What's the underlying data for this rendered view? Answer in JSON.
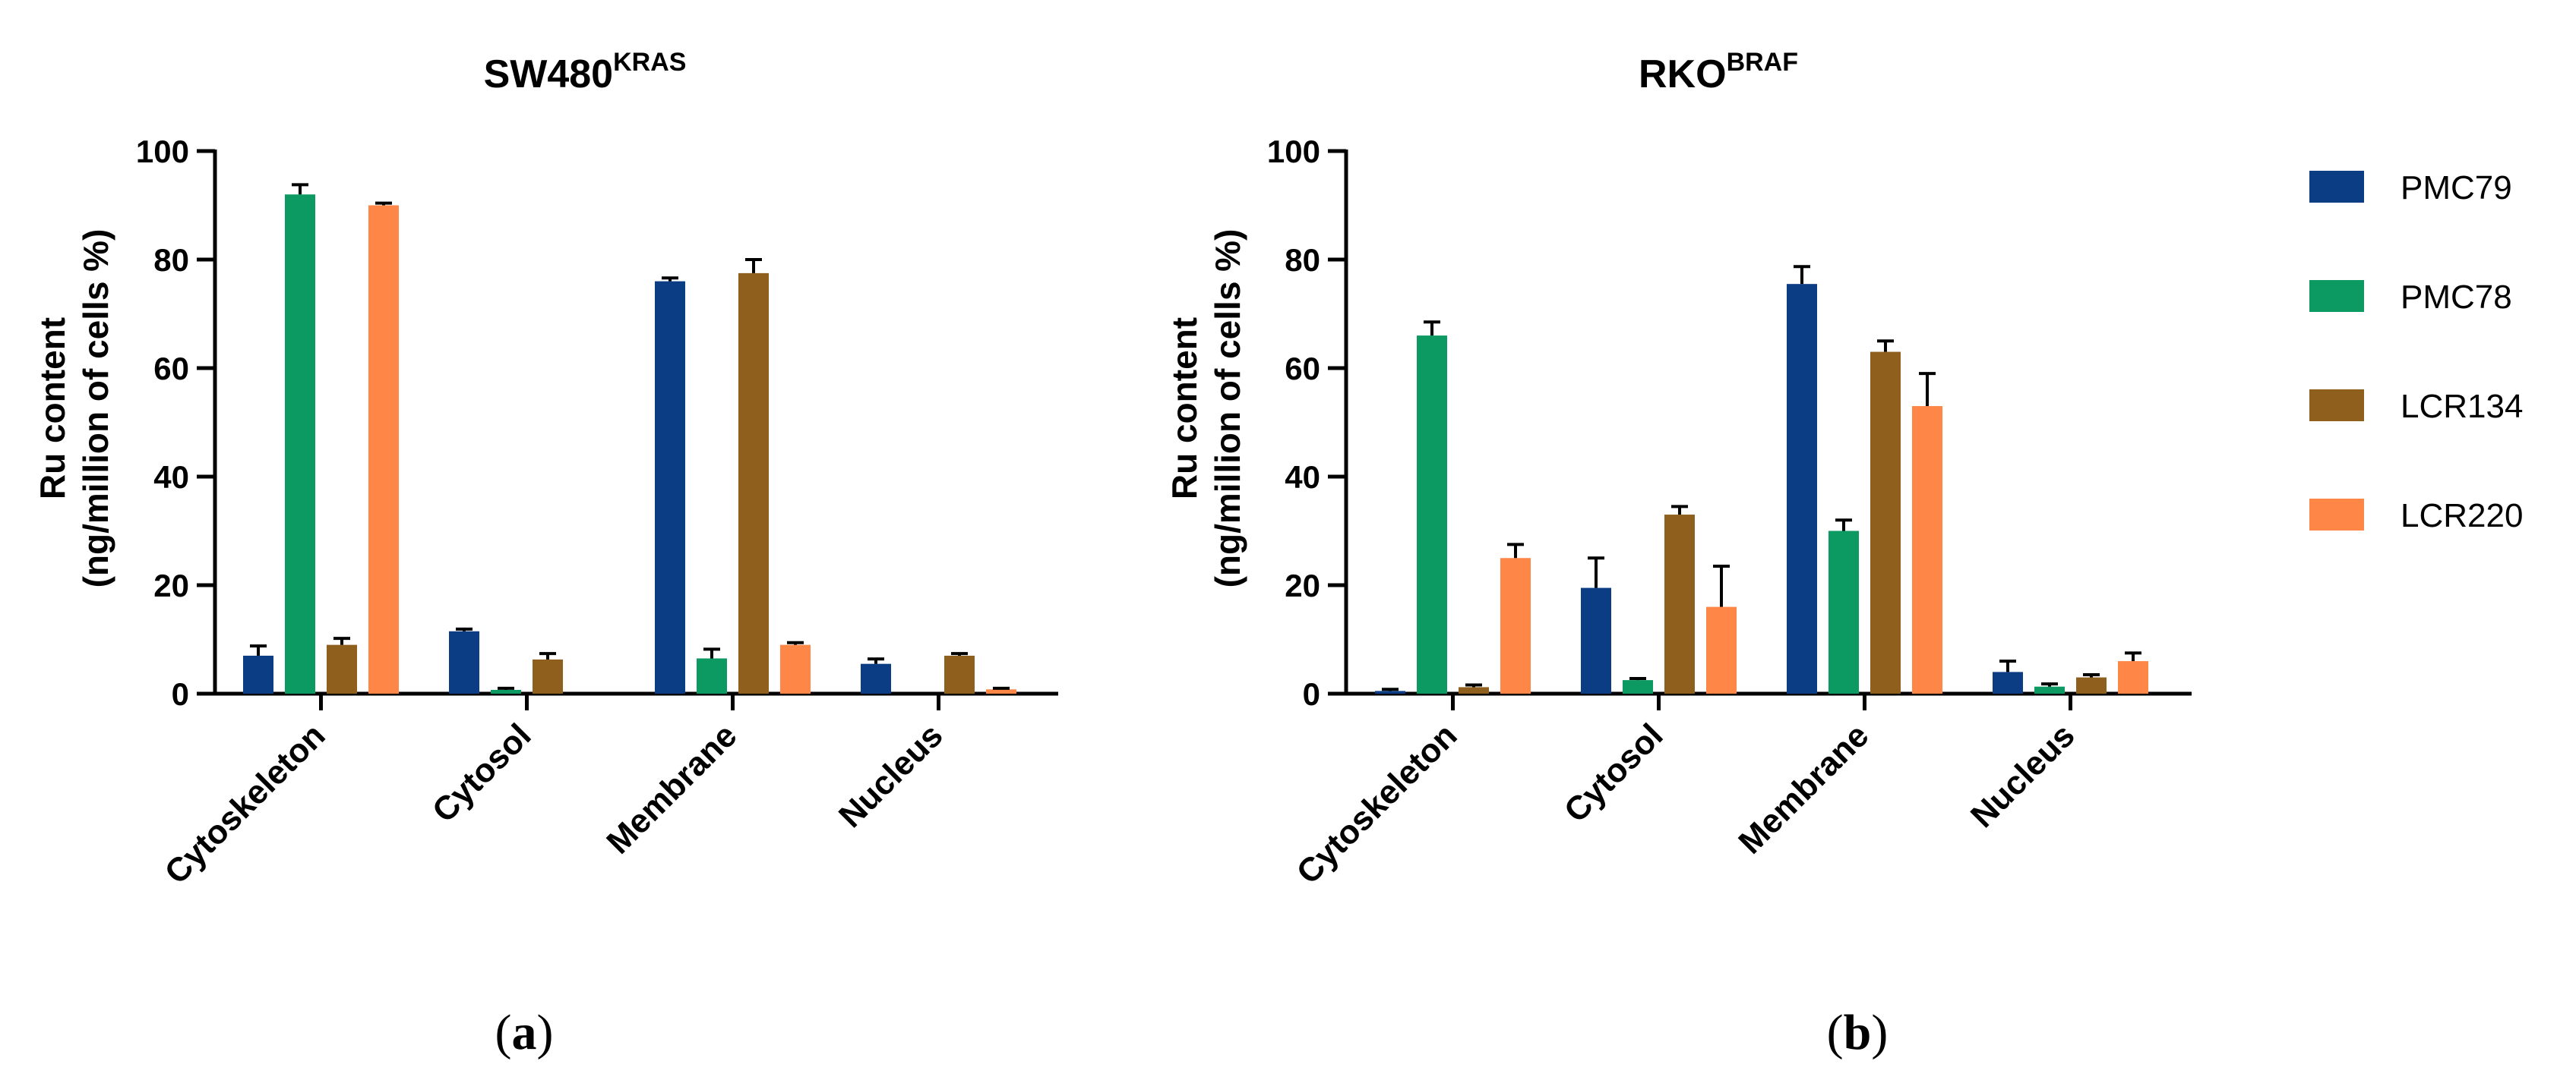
{
  "series_names": [
    "PMC79",
    "PMC78",
    "LCR134",
    "LCR220"
  ],
  "colors": {
    "PMC79": "#0b3d84",
    "PMC78": "#0c9a62",
    "LCR134": "#8f5f1e",
    "LCR220": "#fe8748"
  },
  "ytick_labels": [
    "0",
    "20",
    "40",
    "60",
    "80",
    "100"
  ],
  "panel_labels": [
    {
      "open": "(",
      "letter": "a",
      "close": ")"
    },
    {
      "open": "(",
      "letter": "b",
      "close": ")"
    }
  ],
  "chart_data": [
    {
      "type": "bar",
      "title": "SW480",
      "title_superscript": "KRAS",
      "ylabel_line1": "Ru content",
      "ylabel_line2": "(ng/million of cells %)",
      "categories": [
        "Cytoskeleton",
        "Cytosol",
        "Membrane",
        "Nucleus"
      ],
      "ylim": [
        0,
        100
      ],
      "series": [
        {
          "name": "PMC79",
          "values": [
            7,
            11.5,
            76,
            5.5
          ],
          "errors": [
            1.8,
            0.4,
            0.6,
            0.9
          ]
        },
        {
          "name": "PMC78",
          "values": [
            92,
            0.7,
            6.5,
            0
          ],
          "errors": [
            1.8,
            0.3,
            1.7,
            0
          ]
        },
        {
          "name": "LCR134",
          "values": [
            9,
            6.3,
            77.5,
            7
          ],
          "errors": [
            1.2,
            1.1,
            2.5,
            0.4
          ]
        },
        {
          "name": "LCR220",
          "values": [
            90,
            0,
            9,
            0.8
          ],
          "errors": [
            0.4,
            0,
            0.4,
            0.2
          ]
        }
      ]
    },
    {
      "type": "bar",
      "title": "RKO",
      "title_superscript": "BRAF",
      "ylabel_line1": "Ru content",
      "ylabel_line2": "(ng/million of cells %)",
      "categories": [
        "Cytoskeleton",
        "Cytosol",
        "Membrane",
        "Nucleus"
      ],
      "ylim": [
        0,
        100
      ],
      "series": [
        {
          "name": "PMC79",
          "values": [
            0.5,
            19.5,
            75.5,
            4
          ],
          "errors": [
            0.3,
            5.5,
            3.2,
            2
          ]
        },
        {
          "name": "PMC78",
          "values": [
            66,
            2.5,
            30,
            1.3
          ],
          "errors": [
            2.5,
            0.3,
            2,
            0.5
          ]
        },
        {
          "name": "LCR134",
          "values": [
            1.2,
            33,
            63,
            3
          ],
          "errors": [
            0.4,
            1.5,
            2,
            0.5
          ]
        },
        {
          "name": "LCR220",
          "values": [
            25,
            16,
            53,
            6
          ],
          "errors": [
            2.5,
            7.5,
            6,
            1.5
          ]
        }
      ]
    }
  ]
}
